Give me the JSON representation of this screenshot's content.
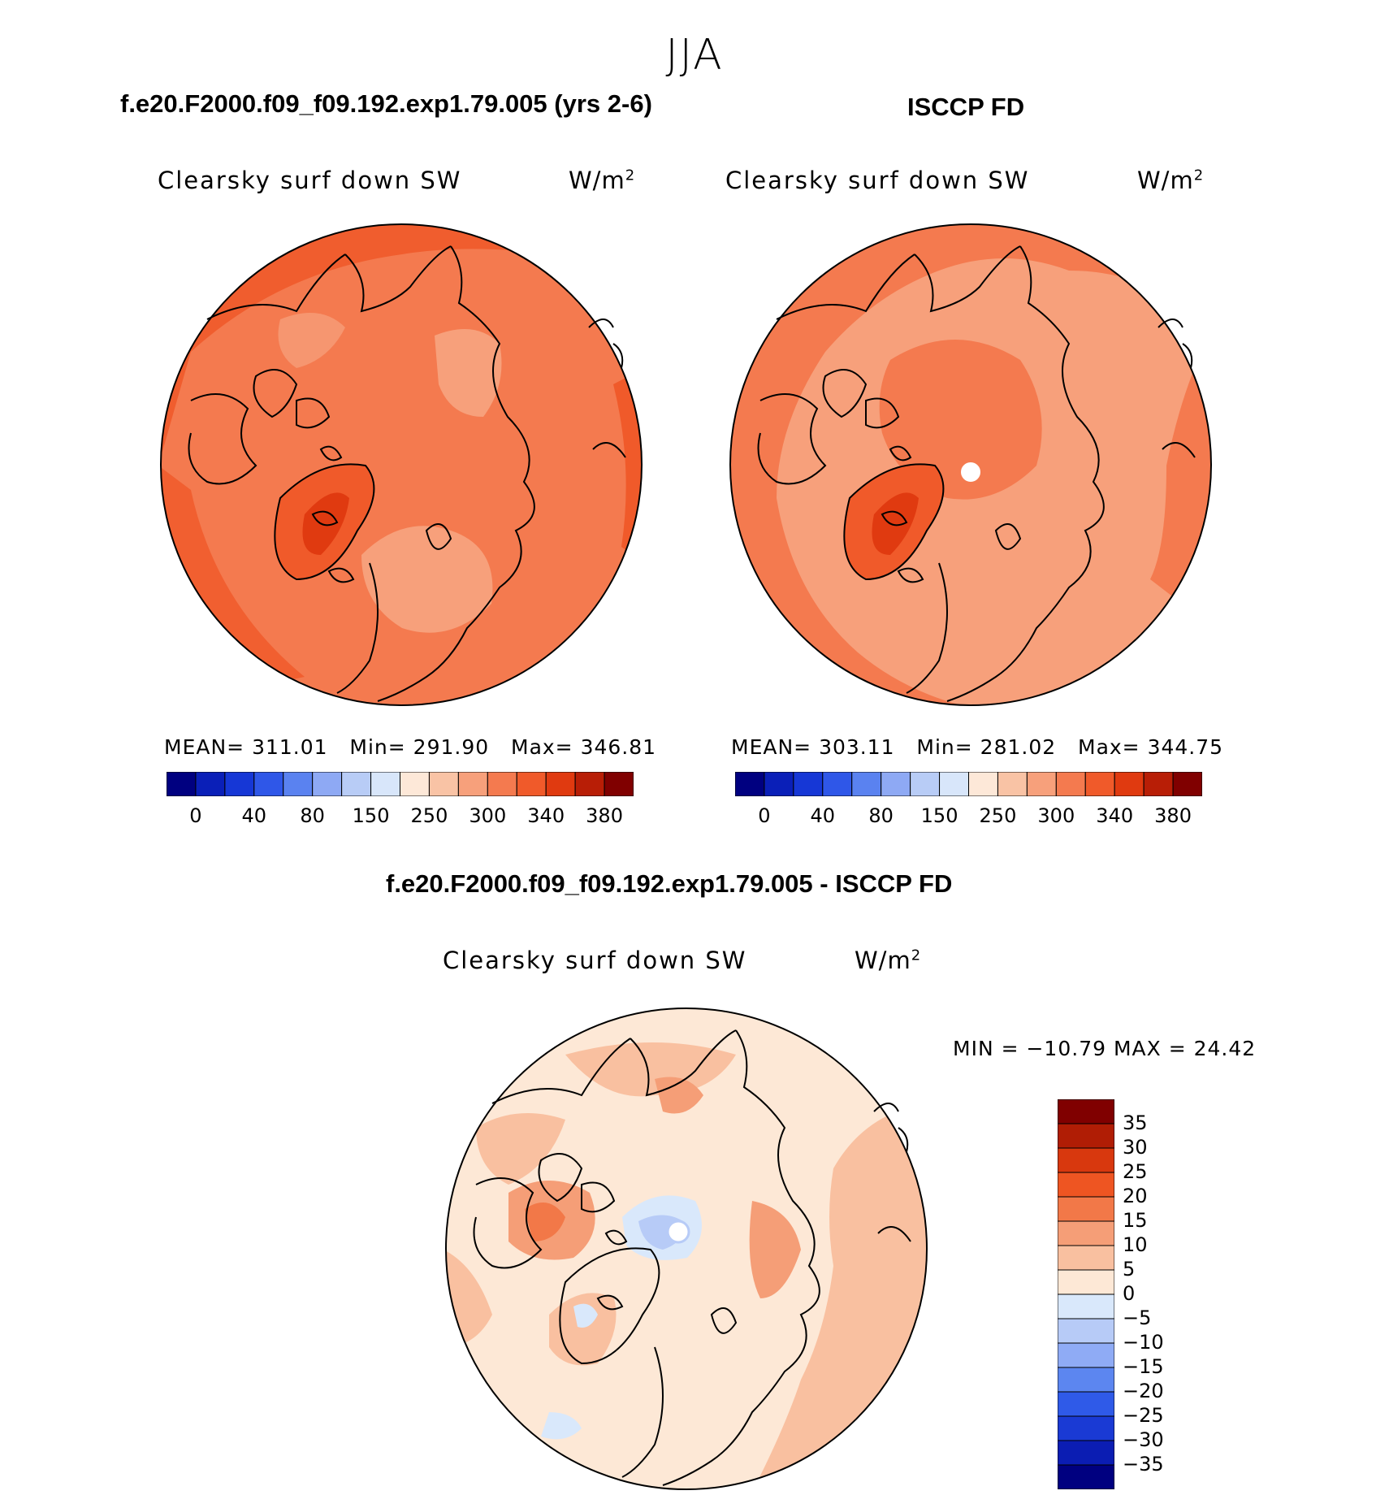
{
  "season": "JJA",
  "panels": [
    {
      "title": "f.e20.F2000.f09_f09.192.exp1.79.005 (yrs 2-6)",
      "variable": "Clearsky surf down SW",
      "units": "W/m",
      "units_exp": "2",
      "mean_label": "MEAN=",
      "mean": "311.01",
      "min_label": "Min=",
      "min": "291.90",
      "max_label": "Max=",
      "max": "346.81",
      "has_pole_hole": false
    },
    {
      "title": "ISCCP FD",
      "variable": "Clearsky surf down SW",
      "units": "W/m",
      "units_exp": "2",
      "mean_label": "MEAN=",
      "mean": "303.11",
      "min_label": "Min=",
      "min": "281.02",
      "max_label": "Max=",
      "max": "344.75",
      "has_pole_hole": true
    }
  ],
  "colorbar": {
    "colors": [
      "#000080",
      "#0a1fb8",
      "#1637d6",
      "#2f57e8",
      "#5a82f0",
      "#8ea9f4",
      "#b8ccf6",
      "#d8e6fa",
      "#fde8d8",
      "#f9c3a5",
      "#f7a07b",
      "#f47a4f",
      "#f05a2a",
      "#e03a10",
      "#b81e06",
      "#800000"
    ],
    "labels": [
      "0",
      "40",
      "80",
      "150",
      "250",
      "300",
      "340",
      "380"
    ]
  },
  "diff": {
    "title": "f.e20.F2000.f09_f09.192.exp1.79.005 - ISCCP FD",
    "variable": "Clearsky surf down SW",
    "units": "W/m",
    "units_exp": "2",
    "minmax_text": "MIN = −10.79 MAX =  24.42",
    "colorbar_colors": [
      "#000080",
      "#0b1db3",
      "#1a3ad4",
      "#2f5ae8",
      "#5c86f0",
      "#8fabf5",
      "#b7cbf7",
      "#d9e8fb",
      "#fde8d6",
      "#f9c0a0",
      "#f59e77",
      "#f27848",
      "#ee5522",
      "#d8380e",
      "#b01d05",
      "#800000"
    ],
    "colorbar_labels": [
      "35",
      "30",
      "25",
      "20",
      "15",
      "10",
      "5",
      "0",
      "−5",
      "−10",
      "−15",
      "−20",
      "−25",
      "−30",
      "−35"
    ]
  }
}
